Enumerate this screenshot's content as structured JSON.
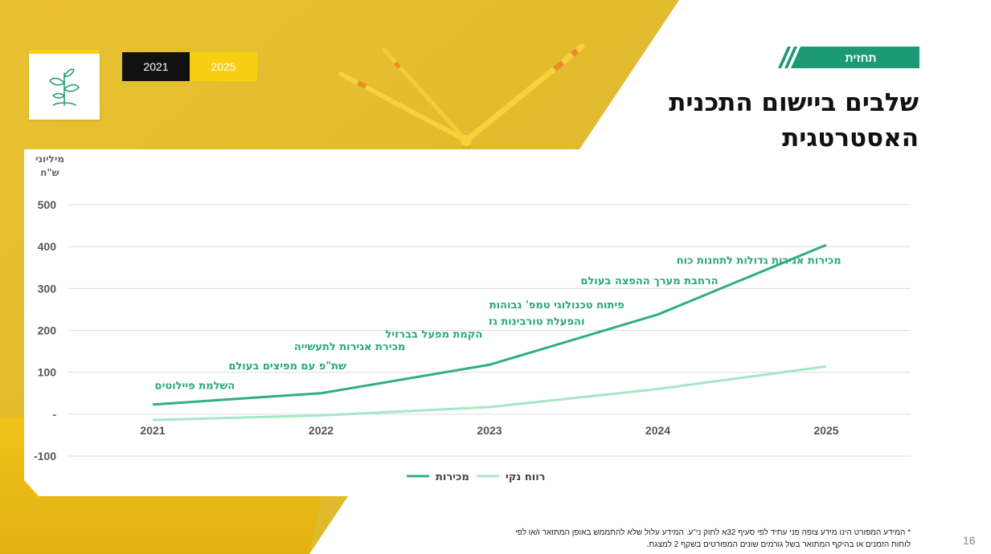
{
  "colors": {
    "yellow": "#f7cf12",
    "green_dark": "#2fae84",
    "green_light": "#a6e8c4",
    "tag_green": "#1b9a74"
  },
  "header": {
    "tag": "תחזית",
    "title_line1": "שלבים ביישום התכנית",
    "title_line2": "האסטרטגית",
    "logo_icon": "seedling-icon"
  },
  "year_tabs": [
    "2021",
    "2025"
  ],
  "chart_data": {
    "type": "line",
    "ylabel_line1": "מיליוני",
    "ylabel_line2": "ש\"ח",
    "ylim": [
      -100,
      500
    ],
    "yticks": [
      {
        "value": 500,
        "label": "500"
      },
      {
        "value": 400,
        "label": "400"
      },
      {
        "value": 300,
        "label": "300"
      },
      {
        "value": 200,
        "label": "200"
      },
      {
        "value": 100,
        "label": "100"
      },
      {
        "value": 0,
        "label": "-"
      },
      {
        "value": -100,
        "label": "-100"
      }
    ],
    "x": [
      "2021",
      "2022",
      "2023",
      "2024",
      "2025"
    ],
    "grid": true,
    "legend_position": "bottom",
    "series": [
      {
        "name": "מכירות",
        "color": "#2fae84",
        "values": [
          23,
          50,
          118,
          238,
          404
        ]
      },
      {
        "name": "רווח נקי",
        "color": "#a6e8c4",
        "values": [
          -14,
          -3,
          17,
          60,
          114
        ]
      }
    ],
    "annotations": [
      {
        "text": "השלמת פיילוטים",
        "x": 2021.25,
        "y": 60
      },
      {
        "text": "שת\"פ עם מפיצים בעולם",
        "x": 2021.8,
        "y": 107
      },
      {
        "text": "מכירת אגירות לתעשייה",
        "x": 2022.17,
        "y": 153
      },
      {
        "text": "הקמת מפעל בברזיל",
        "x": 2022.67,
        "y": 183
      },
      {
        "text": "והפעלת טורבינות גז",
        "x": 2023.28,
        "y": 213
      },
      {
        "text": "פיתוח טכנולוגי טמפ' גבוהות",
        "x": 2023.4,
        "y": 253
      },
      {
        "text": "הרחבת מערך ההפצה בעולם",
        "x": 2023.95,
        "y": 310
      },
      {
        "text": "מכירות אגירות גדולות לתחנות כוח",
        "x": 2024.6,
        "y": 359
      }
    ]
  },
  "footnote_line1": "* המידע המפורט הינו מידע צופה פני עתיד לפי סעיף 32א לחוק ני\"ע. המידע עלול שלא להתממש באופן המתואר ו/או לפי",
  "footnote_line2": "לוחות הזמנים או בהיקף המתואר בשל גורמים שונים המפורטים בשקף 2 למצגת.",
  "page_number": "16"
}
